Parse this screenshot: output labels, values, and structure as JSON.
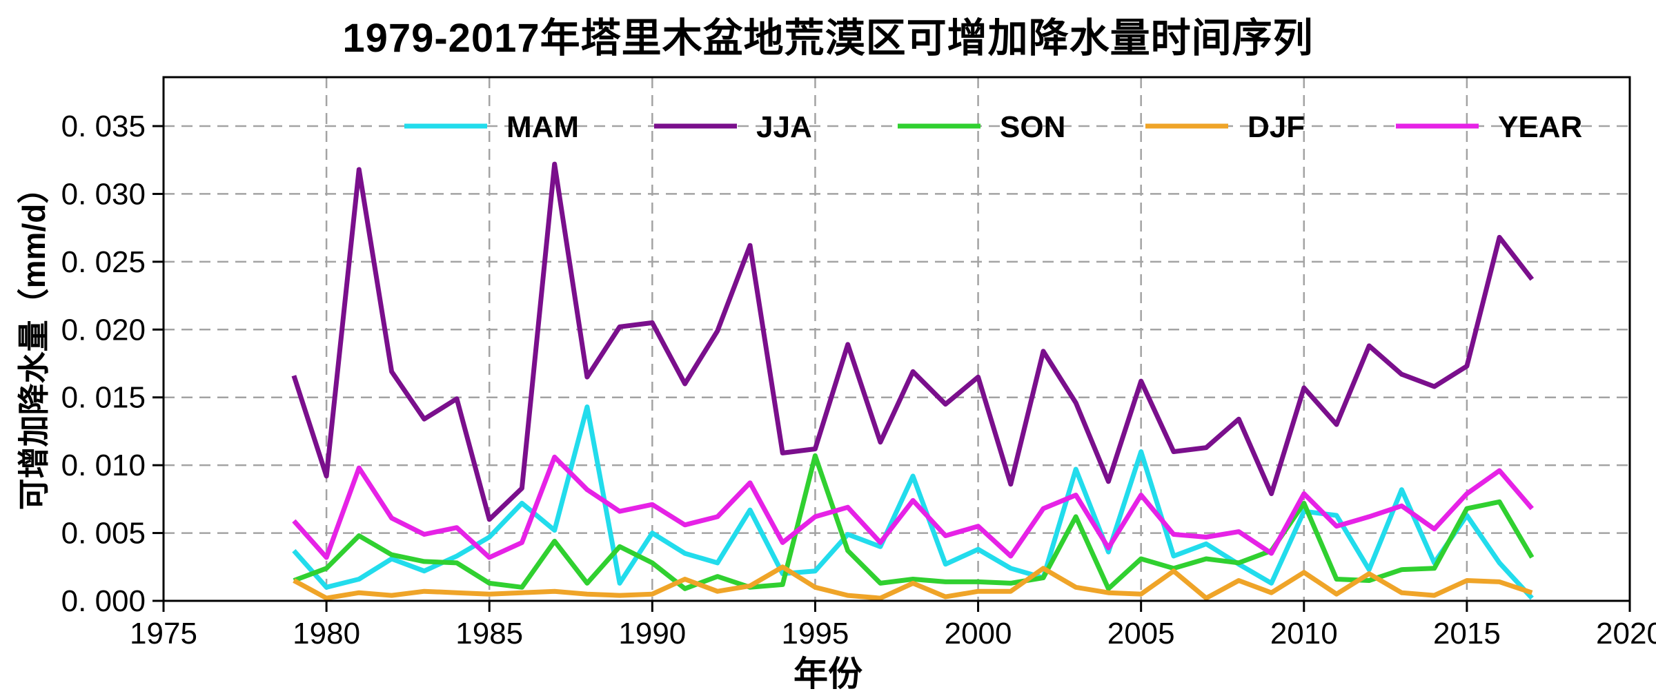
{
  "title": "1979-2017年塔里木盆地荒漠区可增加降水量时间序列",
  "x_axis": {
    "label": "年份",
    "ticks": [
      "1975",
      "1980",
      "1985",
      "1990",
      "1995",
      "2000",
      "2005",
      "2010",
      "2015",
      "2020"
    ]
  },
  "y_axis": {
    "label": "可增加降水量（mm/d）",
    "ticks": [
      "0. 000",
      "0. 005",
      "0. 010",
      "0. 015",
      "0. 020",
      "0. 025",
      "0. 030",
      "0. 035"
    ]
  },
  "colors": {
    "MAM": "#22dcec",
    "JJA": "#7a0f8c",
    "SON": "#30d030",
    "DJF": "#efa428",
    "YEAR": "#e622e6",
    "grid": "#a3a3a3",
    "axis": "#000000",
    "background": "#ffffff"
  },
  "chart_data": {
    "type": "line",
    "title": "1979-2017年塔里木盆地荒漠区可增加降水量时间序列",
    "xlabel": "年份",
    "ylabel": "可增加降水量（mm/d）",
    "xlim": [
      1975,
      2020
    ],
    "ylim": [
      0,
      0.0387
    ],
    "x_tick_values": [
      1975,
      1980,
      1985,
      1990,
      1995,
      2000,
      2005,
      2010,
      2015,
      2020
    ],
    "y_tick_values": [
      0.0,
      0.005,
      0.01,
      0.015,
      0.02,
      0.025,
      0.03,
      0.035
    ],
    "grid": true,
    "legend_position": "top-inside",
    "x": [
      1979,
      1980,
      1981,
      1982,
      1983,
      1984,
      1985,
      1986,
      1987,
      1988,
      1989,
      1990,
      1991,
      1992,
      1993,
      1994,
      1995,
      1996,
      1997,
      1998,
      1999,
      2000,
      2001,
      2002,
      2003,
      2004,
      2005,
      2006,
      2007,
      2008,
      2009,
      2010,
      2011,
      2012,
      2013,
      2014,
      2015,
      2016,
      2017
    ],
    "series": [
      {
        "name": "MAM",
        "color": "#22dcec",
        "values": [
          0.0037,
          0.001,
          0.0016,
          0.0031,
          0.0022,
          0.0033,
          0.0047,
          0.0072,
          0.0052,
          0.0143,
          0.0013,
          0.005,
          0.0035,
          0.0028,
          0.0067,
          0.002,
          0.0022,
          0.0049,
          0.004,
          0.0092,
          0.0027,
          0.0038,
          0.0024,
          0.0017,
          0.0097,
          0.0036,
          0.011,
          0.0033,
          0.0042,
          0.0027,
          0.0013,
          0.0066,
          0.0063,
          0.0023,
          0.0082,
          0.0028,
          0.0063,
          0.0028,
          0.0002
        ]
      },
      {
        "name": "JJA",
        "color": "#7a0f8c",
        "values": [
          0.0166,
          0.0092,
          0.0318,
          0.0169,
          0.0134,
          0.0149,
          0.006,
          0.0083,
          0.0322,
          0.0165,
          0.0202,
          0.0205,
          0.016,
          0.0199,
          0.0262,
          0.0109,
          0.0112,
          0.0189,
          0.0117,
          0.0169,
          0.0145,
          0.0165,
          0.0086,
          0.0184,
          0.0146,
          0.0088,
          0.0162,
          0.011,
          0.0113,
          0.0134,
          0.0079,
          0.0157,
          0.013,
          0.0188,
          0.0167,
          0.0158,
          0.0173,
          0.0268,
          0.0237
        ]
      },
      {
        "name": "SON",
        "color": "#30d030",
        "values": [
          0.0015,
          0.0024,
          0.0048,
          0.0034,
          0.0029,
          0.0028,
          0.0013,
          0.001,
          0.0044,
          0.0013,
          0.004,
          0.0028,
          0.0009,
          0.0018,
          0.001,
          0.0012,
          0.0107,
          0.0037,
          0.0013,
          0.0016,
          0.0014,
          0.0014,
          0.0013,
          0.0017,
          0.0062,
          0.0009,
          0.0031,
          0.0024,
          0.0031,
          0.0028,
          0.0037,
          0.0072,
          0.0016,
          0.0015,
          0.0023,
          0.0024,
          0.0068,
          0.0073,
          0.0032
        ]
      },
      {
        "name": "DJF",
        "color": "#efa428",
        "values": [
          0.0015,
          0.0002,
          0.0006,
          0.0004,
          0.0007,
          0.0006,
          0.0005,
          0.0006,
          0.0007,
          0.0005,
          0.0004,
          0.0005,
          0.0016,
          0.0007,
          0.0011,
          0.0025,
          0.001,
          0.0004,
          0.0002,
          0.0013,
          0.0003,
          0.0007,
          0.0007,
          0.0024,
          0.001,
          0.0006,
          0.0005,
          0.0022,
          0.0002,
          0.0015,
          0.0006,
          0.0021,
          0.0005,
          0.002,
          0.0006,
          0.0004,
          0.0015,
          0.0014,
          0.0006
        ]
      },
      {
        "name": "YEAR",
        "color": "#e622e6",
        "values": [
          0.0059,
          0.0032,
          0.0098,
          0.0061,
          0.0049,
          0.0054,
          0.0032,
          0.0043,
          0.0106,
          0.0082,
          0.0066,
          0.0071,
          0.0056,
          0.0062,
          0.0087,
          0.0043,
          0.0062,
          0.0069,
          0.0043,
          0.0074,
          0.0048,
          0.0055,
          0.0033,
          0.0068,
          0.0078,
          0.0039,
          0.0078,
          0.0049,
          0.0047,
          0.0051,
          0.0035,
          0.0079,
          0.0055,
          0.0062,
          0.007,
          0.0053,
          0.0079,
          0.0096,
          0.0068
        ]
      }
    ]
  }
}
